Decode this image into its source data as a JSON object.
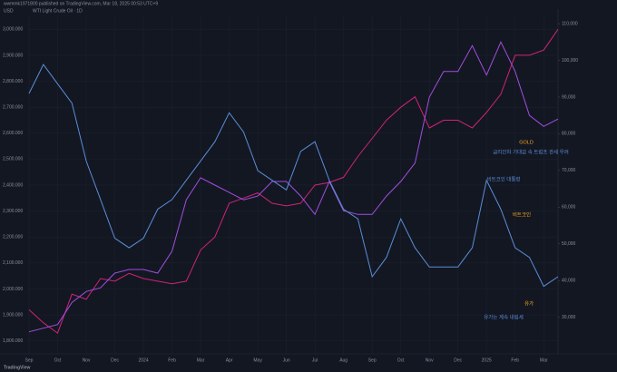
{
  "chart_data": {
    "type": "line",
    "header": "wwmmk1971800 published on TradingView.com, Mar 18, 2025 00:53 UTC+9",
    "currency": "USD",
    "legend_text": "WTI Light Crude Oil · 1D",
    "brand": "TradingView",
    "annotations": [
      "GOLD",
      "비트코인",
      "비트코인 대통령",
      "유가",
      "유가는 계속 내림세",
      "금리인하 기대감 속 트럼프 관세 우려"
    ],
    "xlim": [
      0,
      37
    ],
    "xticks": [
      {
        "value": 0,
        "label": "Sep"
      },
      {
        "value": 2,
        "label": "Oct"
      },
      {
        "value": 4,
        "label": "Nov"
      },
      {
        "value": 6,
        "label": "Dec"
      },
      {
        "value": 8,
        "label": "2024"
      },
      {
        "value": 10,
        "label": "Feb"
      },
      {
        "value": 12,
        "label": "Mar"
      },
      {
        "value": 14,
        "label": "Apr"
      },
      {
        "value": 16,
        "label": "May"
      },
      {
        "value": 18,
        "label": "Jun"
      },
      {
        "value": 20,
        "label": "Jul"
      },
      {
        "value": 22,
        "label": "Aug"
      },
      {
        "value": 24,
        "label": "Sep"
      },
      {
        "value": 26,
        "label": "Oct"
      },
      {
        "value": 28,
        "label": "Nov"
      },
      {
        "value": 30,
        "label": "Dec"
      },
      {
        "value": 32,
        "label": "2025"
      },
      {
        "value": 34,
        "label": "Feb"
      },
      {
        "value": 36,
        "label": "Mar"
      }
    ],
    "ylim": [
      1750,
      3050
    ],
    "yticks": [
      {
        "value": 1800,
        "label": "1,800.000"
      },
      {
        "value": 1900,
        "label": "1,900.000"
      },
      {
        "value": 2000,
        "label": "2,000.000"
      },
      {
        "value": 2100,
        "label": "2,100.000"
      },
      {
        "value": 2200,
        "label": "2,200.000"
      },
      {
        "value": 2300,
        "label": "2,300.000"
      },
      {
        "value": 2400,
        "label": "2,400.000"
      },
      {
        "value": 2500,
        "label": "2,500.000"
      },
      {
        "value": 2600,
        "label": "2,600.000"
      },
      {
        "value": 2700,
        "label": "2,700.000"
      },
      {
        "value": 2800,
        "label": "2,800.000"
      },
      {
        "value": 2900,
        "label": "2,900.000"
      },
      {
        "value": 3000,
        "label": "3,000.000"
      }
    ],
    "y2lim": [
      20000,
      112000
    ],
    "y2ticks": [
      {
        "value": 30000,
        "label": "30,000"
      },
      {
        "value": 40000,
        "label": "40,000"
      },
      {
        "value": 50000,
        "label": "50,000"
      },
      {
        "value": 60000,
        "label": "60,000"
      },
      {
        "value": 70000,
        "label": "70,000"
      },
      {
        "value": 80000,
        "label": "80,000"
      },
      {
        "value": 90000,
        "label": "90,000"
      },
      {
        "value": 100000,
        "label": "100,000"
      },
      {
        "value": 110000,
        "label": "110,000"
      }
    ],
    "y3lim": [
      60,
      95
    ],
    "grid": true,
    "series": [
      {
        "name": "GOLD",
        "color": "#d0237a",
        "values": [
          1920,
          1870,
          1830,
          1980,
          1960,
          2040,
          2030,
          2060,
          2040,
          2030,
          2020,
          2030,
          2150,
          2200,
          2330,
          2350,
          2370,
          2330,
          2320,
          2330,
          2400,
          2410,
          2430,
          2510,
          2580,
          2650,
          2700,
          2740,
          2620,
          2650,
          2650,
          2620,
          2680,
          2750,
          2900,
          2900,
          2920,
          3000
        ]
      },
      {
        "name": "BTCUSD",
        "color": "#a24ee0",
        "axis": "y2",
        "values": [
          26000,
          27000,
          28000,
          34000,
          37000,
          38000,
          42000,
          43000,
          43000,
          42000,
          48000,
          62000,
          68000,
          66000,
          64000,
          62000,
          63000,
          67000,
          67000,
          63000,
          58000,
          67000,
          59000,
          58000,
          58000,
          63000,
          67000,
          72000,
          90000,
          97000,
          97000,
          104000,
          96000,
          105000,
          97000,
          85000,
          82000,
          84000
        ]
      },
      {
        "name": "WTI",
        "color": "#5a8ed8",
        "axis": "y3",
        "values": [
          87,
          90,
          88,
          86,
          80,
          76,
          72,
          71,
          72,
          75,
          76,
          78,
          80,
          82,
          85,
          83,
          79,
          78,
          77,
          81,
          82,
          78,
          75,
          74,
          68,
          70,
          74,
          71,
          69,
          69,
          69,
          71,
          78,
          75,
          71,
          70,
          67,
          68
        ]
      }
    ]
  }
}
